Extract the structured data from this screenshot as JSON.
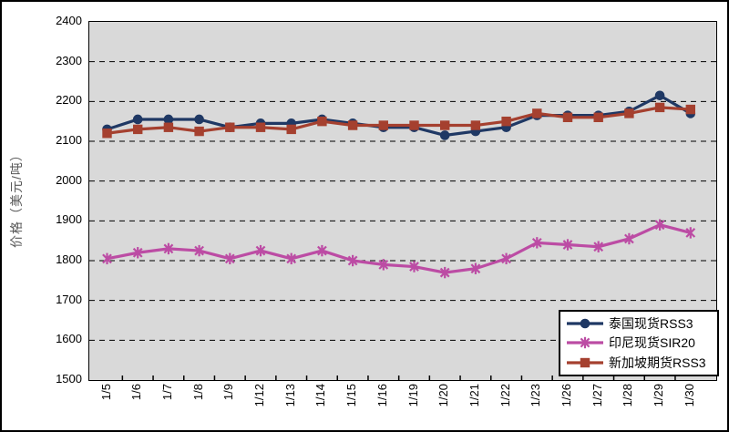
{
  "chart_data": {
    "type": "line",
    "title": "",
    "xlabel": "",
    "ylabel": "价格（美元/吨）",
    "ylim": [
      1500,
      2400
    ],
    "ytick_step": 100,
    "grid": "horizontal-dashed",
    "plot_bg_color": "#D9D9D9",
    "legend_position": "bottom-right-inside",
    "categories": [
      "1/5",
      "1/6",
      "1/7",
      "1/8",
      "1/9",
      "1/12",
      "1/13",
      "1/14",
      "1/15",
      "1/16",
      "1/19",
      "1/20",
      "1/21",
      "1/22",
      "1/23",
      "1/26",
      "1/27",
      "1/28",
      "1/29",
      "1/30"
    ],
    "series": [
      {
        "name": "泰国现货RSS3",
        "marker": "circle",
        "color": "#1F3864",
        "values": [
          2130,
          2155,
          2155,
          2155,
          2135,
          2145,
          2145,
          2155,
          2145,
          2135,
          2135,
          2115,
          2125,
          2135,
          2165,
          2165,
          2165,
          2175,
          2215,
          2170
        ]
      },
      {
        "name": "印尼现货SIR20",
        "marker": "asterisk",
        "color": "#BC4CA4",
        "values": [
          1805,
          1820,
          1830,
          1825,
          1805,
          1825,
          1805,
          1825,
          1800,
          1790,
          1785,
          1770,
          1780,
          1805,
          1845,
          1840,
          1835,
          1855,
          1890,
          1870
        ]
      },
      {
        "name": "新加坡期货RSS3",
        "marker": "square",
        "color": "#A5402F",
        "values": [
          2120,
          2130,
          2135,
          2125,
          2135,
          2135,
          2130,
          2150,
          2140,
          2140,
          2140,
          2140,
          2140,
          2150,
          2170,
          2160,
          2160,
          2170,
          2185,
          2180
        ]
      }
    ]
  }
}
